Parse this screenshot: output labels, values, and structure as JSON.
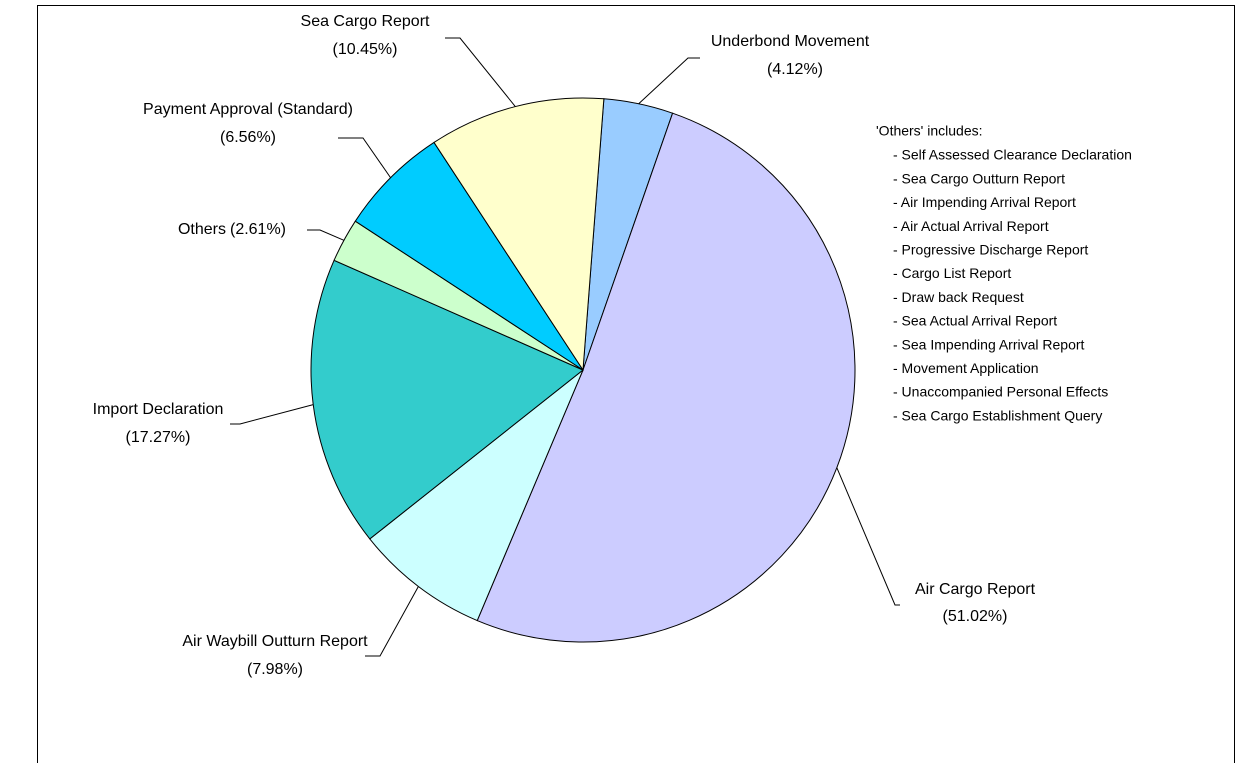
{
  "chart_data": {
    "type": "pie",
    "categories": [
      "Underbond Movement",
      "Air Cargo Report",
      "Air Waybill Outturn Report",
      "Import Declaration",
      "Others",
      "Payment Approval (Standard)",
      "Sea Cargo Report"
    ],
    "values": [
      4.12,
      51.02,
      7.98,
      17.27,
      2.61,
      6.56,
      10.45
    ],
    "value_labels": [
      "(4.12%)",
      "(51.02%)",
      "(7.98%)",
      "(17.27%)",
      "(2.61%)",
      "(6.56%)",
      "(10.45%)"
    ],
    "colors": [
      "#99ccff",
      "#ccccff",
      "#ccffff",
      "#33cccc",
      "#ccffcc",
      "#00ccff",
      "#ffffcc"
    ],
    "annotation": {
      "title": "'Others' includes:",
      "items": [
        "- Self Assessed Clearance Declaration",
        "- Sea Cargo Outturn Report",
        "- Air Impending Arrival Report",
        "- Air Actual Arrival Report",
        "- Progressive Discharge Report",
        "- Cargo List Report",
        "- Draw back Request",
        "- Sea Actual Arrival Report",
        "- Sea Impending Arrival Report",
        "- Movement Application",
        "- Unaccompanied Personal Effects",
        "- Sea Cargo Establishment Query"
      ]
    }
  }
}
